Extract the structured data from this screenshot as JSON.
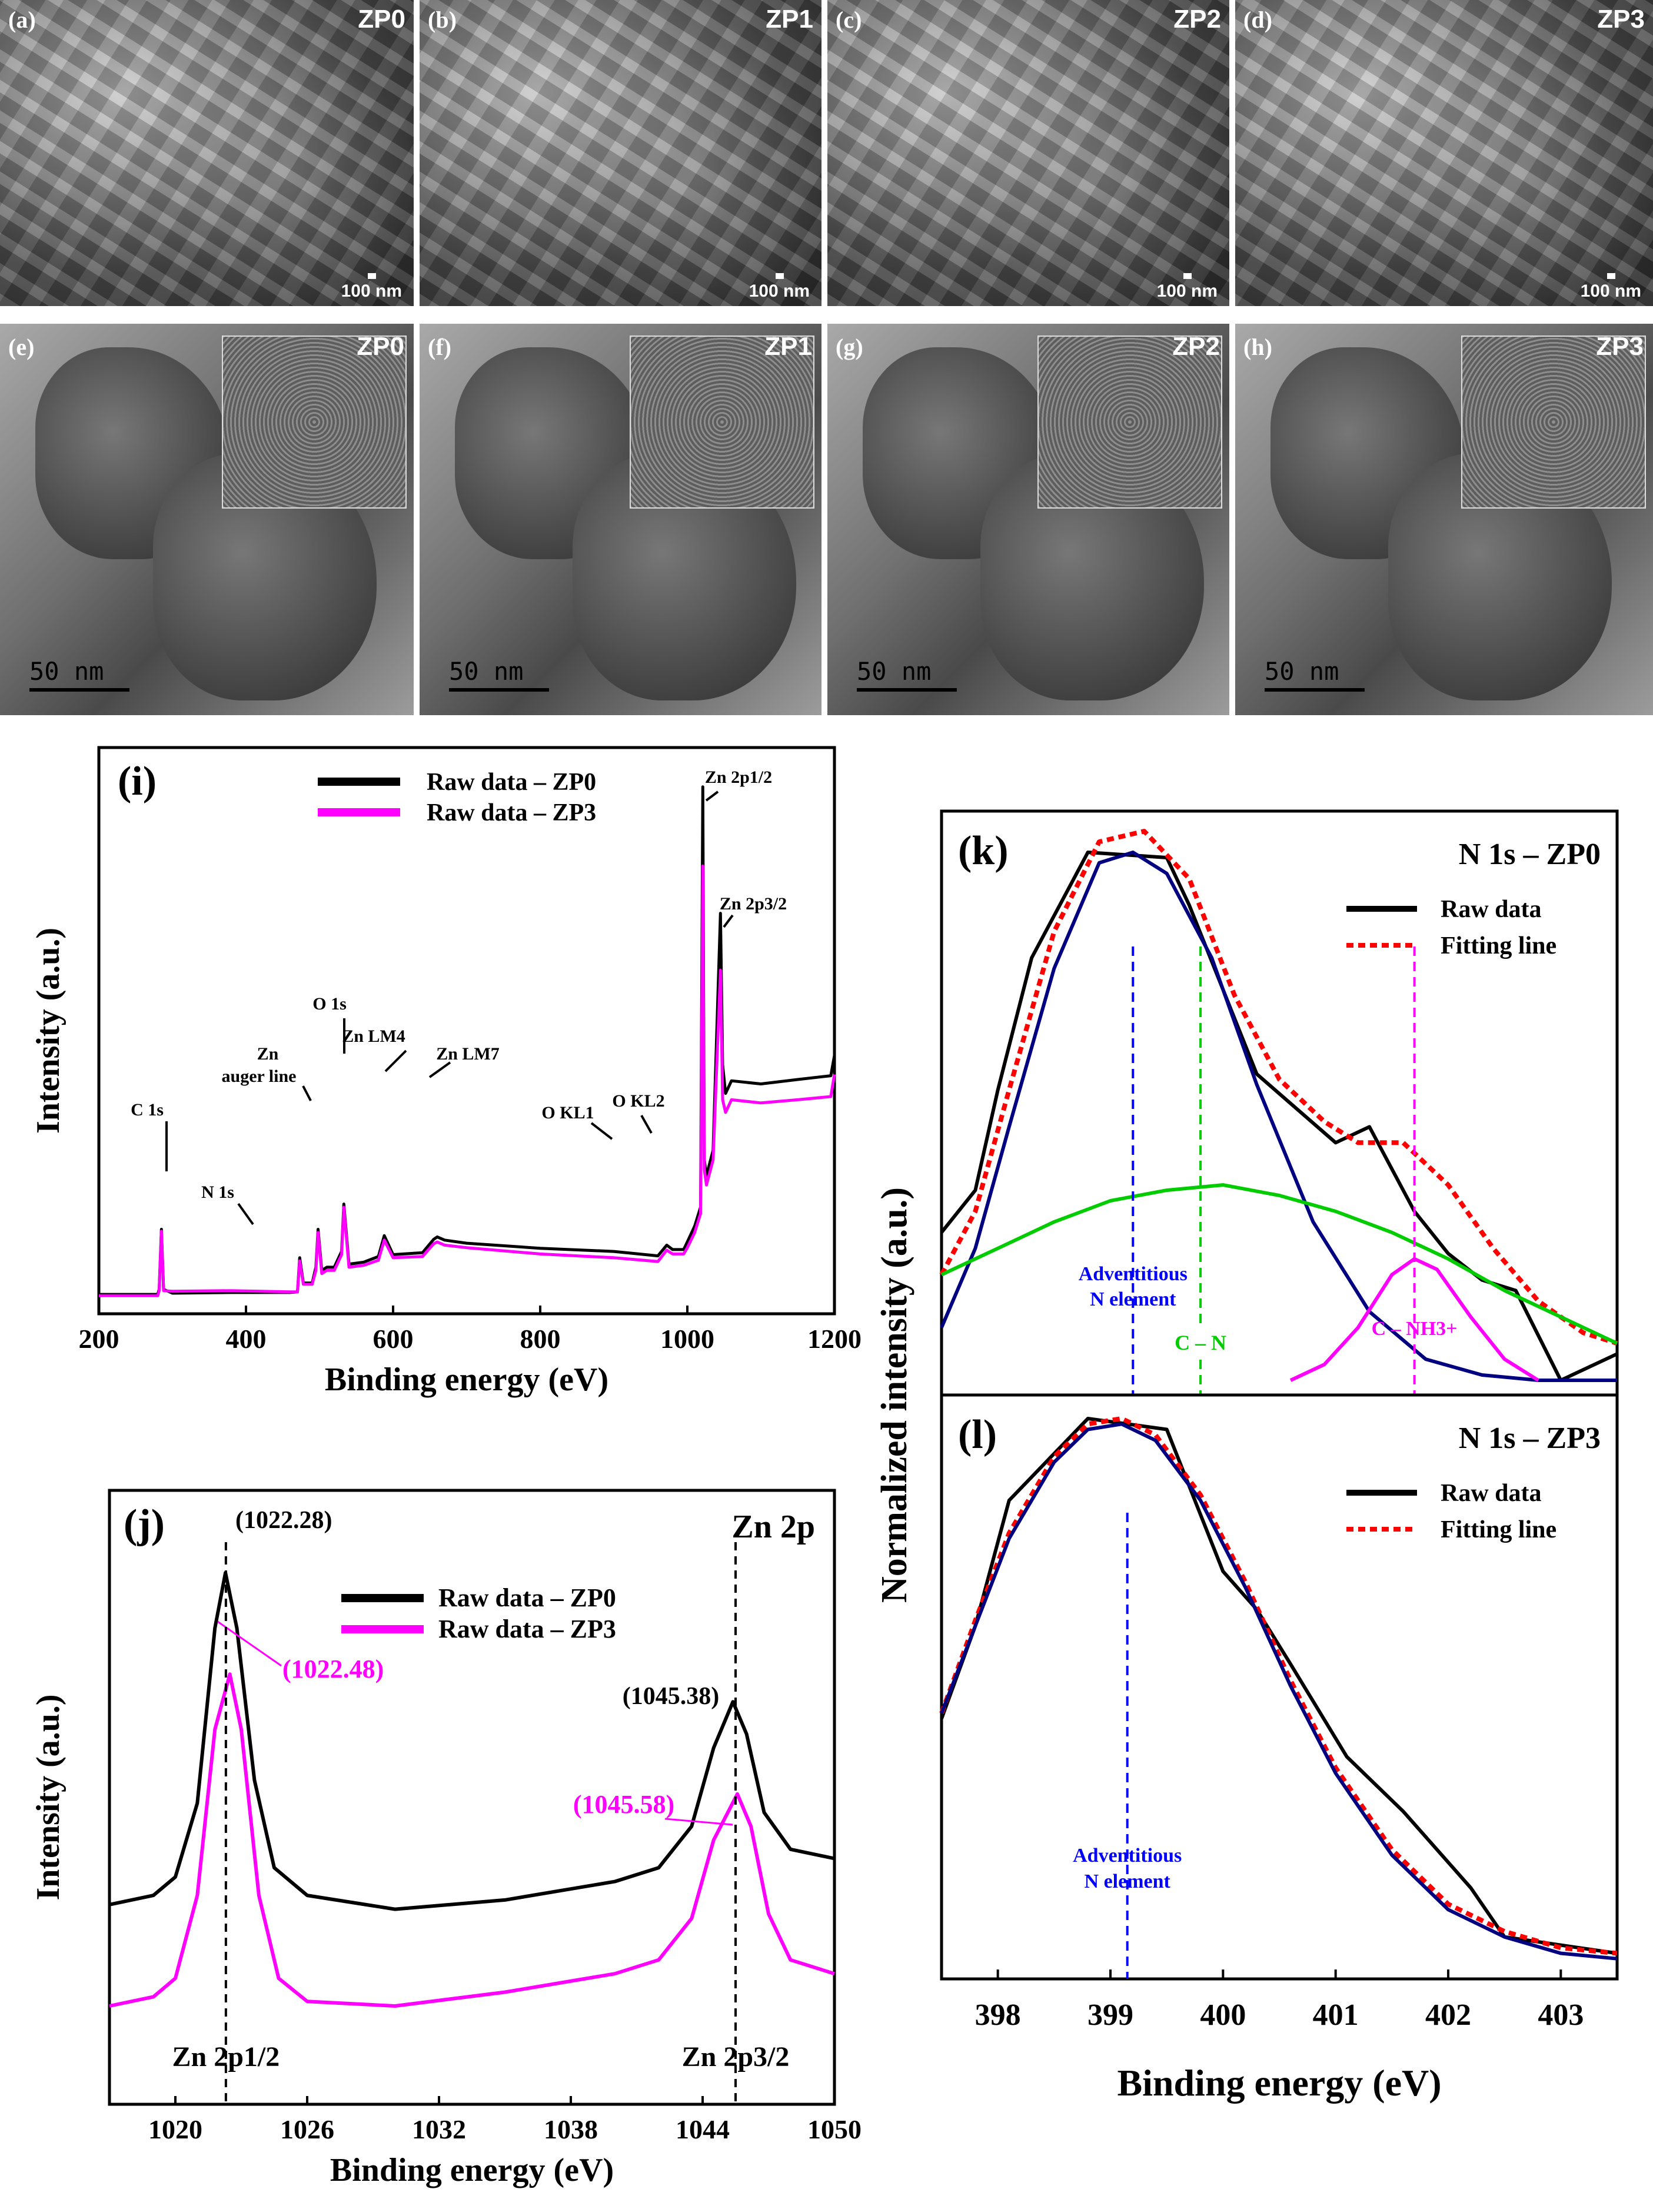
{
  "micrographs": {
    "sem": [
      {
        "letter": "(a)",
        "sample": "ZP0",
        "scale": "100 nm"
      },
      {
        "letter": "(b)",
        "sample": "ZP1",
        "scale": "100 nm"
      },
      {
        "letter": "(c)",
        "sample": "ZP2",
        "scale": "100 nm"
      },
      {
        "letter": "(d)",
        "sample": "ZP3",
        "scale": "100 nm"
      }
    ],
    "tem": [
      {
        "letter": "(e)",
        "sample": "ZP0",
        "scale": "50 nm"
      },
      {
        "letter": "(f)",
        "sample": "ZP1",
        "scale": "50 nm"
      },
      {
        "letter": "(g)",
        "sample": "ZP2",
        "scale": "50 nm"
      },
      {
        "letter": "(h)",
        "sample": "ZP3",
        "scale": "50 nm"
      }
    ]
  },
  "chart_data": [
    {
      "id": "i",
      "panel": "(i)",
      "type": "line",
      "xlabel": "Binding energy (eV)",
      "ylabel": "Intensity (a.u.)",
      "xlim": [
        200,
        1200
      ],
      "xticks": [
        200,
        400,
        600,
        800,
        1000,
        1200
      ],
      "series": [
        {
          "name": "Raw data – ZP0",
          "color": "#000000",
          "x": [
            200,
            280,
            282,
            285,
            288,
            300,
            380,
            460,
            470,
            473,
            478,
            490,
            495,
            498,
            503,
            510,
            520,
            530,
            533,
            540,
            560,
            580,
            588,
            600,
            640,
            655,
            660,
            670,
            700,
            800,
            900,
            960,
            972,
            980,
            995,
            1000,
            1010,
            1018,
            1021,
            1023,
            1026,
            1035,
            1045,
            1048,
            1052,
            1060,
            1100,
            1150,
            1195,
            1200
          ],
          "y": [
            12,
            12,
            20,
            115,
            20,
            14,
            15,
            15,
            16,
            70,
            30,
            30,
            55,
            115,
            50,
            55,
            55,
            80,
            155,
            60,
            63,
            72,
            105,
            75,
            78,
            99,
            103,
            98,
            93,
            85,
            80,
            73,
            90,
            83,
            83,
            95,
            120,
            150,
            815,
            225,
            200,
            240,
            615,
            375,
            330,
            350,
            345,
            352,
            358,
            390
          ]
        },
        {
          "name": "Raw data – ZP3",
          "color": "#ff00ff",
          "x": [
            200,
            280,
            282,
            285,
            288,
            300,
            380,
            460,
            470,
            473,
            478,
            490,
            495,
            498,
            503,
            510,
            520,
            530,
            533,
            540,
            560,
            580,
            588,
            600,
            640,
            655,
            660,
            670,
            700,
            800,
            900,
            960,
            972,
            980,
            995,
            1000,
            1010,
            1018,
            1021,
            1023,
            1026,
            1035,
            1045,
            1048,
            1052,
            1060,
            1100,
            1150,
            1195,
            1200
          ],
          "y": [
            10,
            10,
            18,
            112,
            18,
            17,
            18,
            16,
            16,
            65,
            28,
            28,
            50,
            110,
            45,
            50,
            50,
            75,
            150,
            55,
            58,
            66,
            98,
            70,
            72,
            92,
            95,
            90,
            86,
            76,
            70,
            64,
            82,
            76,
            76,
            86,
            110,
            140,
            690,
            210,
            185,
            225,
            525,
            320,
            300,
            320,
            315,
            320,
            325,
            360
          ]
        }
      ],
      "annotations": [
        {
          "text": "C 1s",
          "x": 285
        },
        {
          "text": "N 1s",
          "x": 400
        },
        {
          "text": "Zn",
          "x": 495
        },
        {
          "text": "auger line",
          "x": 495
        },
        {
          "text": "O 1s",
          "x": 533
        },
        {
          "text": "Zn LM4",
          "x": 590
        },
        {
          "text": "Zn LM7",
          "x": 660
        },
        {
          "text": "O KL1",
          "x": 975
        },
        {
          "text": "O KL2",
          "x": 1000
        },
        {
          "text": "Zn 2p1/2",
          "x": 1021
        },
        {
          "text": "Zn 2p3/2",
          "x": 1045
        }
      ]
    },
    {
      "id": "j",
      "panel": "(j)",
      "type": "line",
      "title": "Zn 2p",
      "xlabel": "Binding energy (eV)",
      "ylabel": "Intensity (a.u.)",
      "xlim": [
        1017,
        1050
      ],
      "xticks": [
        1020,
        1026,
        1032,
        1038,
        1044,
        1050
      ],
      "series": [
        {
          "name": "Raw data – ZP0",
          "color": "#000000",
          "x": [
            1017,
            1019,
            1020,
            1021,
            1021.8,
            1022.28,
            1022.8,
            1023.6,
            1024.5,
            1026,
            1030,
            1035,
            1040,
            1042,
            1043.5,
            1044.5,
            1045.38,
            1046,
            1046.8,
            1048,
            1050
          ],
          "y": [
            0.28,
            0.3,
            0.34,
            0.5,
            0.88,
            1.0,
            0.88,
            0.55,
            0.36,
            0.3,
            0.27,
            0.29,
            0.33,
            0.36,
            0.45,
            0.62,
            0.72,
            0.65,
            0.48,
            0.4,
            0.38
          ]
        },
        {
          "name": "Raw data – ZP3",
          "color": "#ff00ff",
          "x": [
            1017,
            1019,
            1020,
            1021,
            1021.8,
            1022.48,
            1023,
            1023.8,
            1024.7,
            1026,
            1030,
            1035,
            1040,
            1042,
            1043.5,
            1044.5,
            1045.58,
            1046.2,
            1047,
            1048,
            1050
          ],
          "y": [
            0.06,
            0.08,
            0.12,
            0.3,
            0.66,
            0.78,
            0.66,
            0.3,
            0.12,
            0.07,
            0.06,
            0.09,
            0.13,
            0.16,
            0.25,
            0.42,
            0.52,
            0.45,
            0.26,
            0.16,
            0.13
          ]
        }
      ],
      "peak_labels": [
        {
          "text": "(1022.28)"
        },
        {
          "text": "(1022.48)"
        },
        {
          "text": "(1045.38)"
        },
        {
          "text": "(1045.58)"
        }
      ],
      "peak_positions": [
        {
          "label": "Zn 2p1/2",
          "x": 1022.3
        },
        {
          "label": "Zn 2p3/2",
          "x": 1045.5
        }
      ]
    },
    {
      "id": "k",
      "panel": "(k)",
      "type": "line",
      "title": "N 1s – ZP0",
      "xlabel": "Binding energy (eV)",
      "ylabel": "Normalized intensity (a.u.)",
      "xlim": [
        397.5,
        403.5
      ],
      "series": [
        {
          "name": "Raw data",
          "color": "#000000",
          "x": [
            397.5,
            397.8,
            398.0,
            398.3,
            398.8,
            399.5,
            399.7,
            400.3,
            401.0,
            401.3,
            401.7,
            402.0,
            402.3,
            402.6,
            403.0,
            403.5
          ],
          "y": [
            0.28,
            0.36,
            0.55,
            0.8,
            1.0,
            0.99,
            0.9,
            0.58,
            0.45,
            0.48,
            0.32,
            0.24,
            0.19,
            0.17,
            0.0,
            0.05
          ]
        },
        {
          "name": "Fitting line",
          "color": "#ff0000",
          "dash": true,
          "x": [
            397.5,
            397.8,
            398.1,
            398.5,
            398.9,
            399.3,
            399.7,
            400.1,
            400.5,
            400.9,
            401.2,
            401.6,
            402.0,
            402.4,
            402.8,
            403.2,
            403.5
          ],
          "y": [
            0.2,
            0.32,
            0.55,
            0.85,
            1.02,
            1.04,
            0.95,
            0.73,
            0.57,
            0.49,
            0.45,
            0.45,
            0.37,
            0.25,
            0.15,
            0.09,
            0.07
          ]
        },
        {
          "name": "Adventitious N element",
          "color": "#000080",
          "x": [
            397.5,
            397.8,
            398.1,
            398.5,
            398.9,
            399.2,
            399.5,
            399.9,
            400.3,
            400.8,
            401.3,
            401.8,
            402.3,
            402.8,
            403.5
          ],
          "y": [
            0.1,
            0.25,
            0.48,
            0.78,
            0.98,
            1.0,
            0.96,
            0.8,
            0.56,
            0.3,
            0.13,
            0.04,
            0.01,
            0.0,
            0.0
          ]
        },
        {
          "name": "C – N",
          "color": "#00cc00",
          "x": [
            397.5,
            398.0,
            398.5,
            399.0,
            399.5,
            400.0,
            400.5,
            401.0,
            401.5,
            402.0,
            402.5,
            403.0,
            403.5
          ],
          "y": [
            0.2,
            0.25,
            0.3,
            0.34,
            0.36,
            0.37,
            0.35,
            0.32,
            0.28,
            0.23,
            0.17,
            0.12,
            0.07
          ]
        },
        {
          "name": "C – NH3+",
          "color": "#ff00ff",
          "x": [
            400.6,
            400.9,
            401.2,
            401.5,
            401.7,
            401.9,
            402.2,
            402.5,
            402.8
          ],
          "y": [
            0.0,
            0.03,
            0.1,
            0.2,
            0.23,
            0.21,
            0.12,
            0.04,
            0.0
          ]
        }
      ],
      "components": [
        {
          "label": "Adventitious",
          "label2": "N element",
          "x": 399.2,
          "color": "#0000ff"
        },
        {
          "label": "C – N",
          "x": 399.8,
          "color": "#00cc00"
        },
        {
          "label": "C – NH3+",
          "x": 401.7,
          "color": "#ff00ff"
        }
      ]
    },
    {
      "id": "l",
      "panel": "(l)",
      "type": "line",
      "title": "N 1s – ZP3",
      "xlabel": "Binding energy (eV)",
      "ylabel": "Normalized intensity (a.u.)",
      "xlim": [
        397.5,
        403.5
      ],
      "xticks": [
        398,
        399,
        400,
        401,
        402,
        403
      ],
      "series": [
        {
          "name": "Raw data",
          "color": "#000000",
          "x": [
            397.5,
            397.8,
            398.1,
            398.8,
            399.5,
            400.0,
            400.3,
            400.6,
            401.1,
            401.6,
            402.2,
            402.5,
            403.5
          ],
          "y": [
            0.45,
            0.62,
            0.85,
            1.0,
            0.98,
            0.72,
            0.65,
            0.55,
            0.38,
            0.28,
            0.14,
            0.05,
            0.02
          ]
        },
        {
          "name": "Fitting line",
          "color": "#ff0000",
          "dash": true,
          "x": [
            397.5,
            397.8,
            398.1,
            398.5,
            398.8,
            399.1,
            399.4,
            399.8,
            400.2,
            400.6,
            401.0,
            401.5,
            402.0,
            402.5,
            403.0,
            403.5
          ],
          "y": [
            0.46,
            0.63,
            0.79,
            0.93,
            0.99,
            1.0,
            0.97,
            0.86,
            0.7,
            0.52,
            0.36,
            0.21,
            0.11,
            0.06,
            0.03,
            0.02
          ]
        },
        {
          "name": "Adventitious N element",
          "color": "#000080",
          "x": [
            397.5,
            397.8,
            398.1,
            398.5,
            398.8,
            399.1,
            399.4,
            399.8,
            400.2,
            400.6,
            401.0,
            401.5,
            402.0,
            402.5,
            403.0,
            403.5
          ],
          "y": [
            0.46,
            0.62,
            0.78,
            0.92,
            0.98,
            0.99,
            0.96,
            0.85,
            0.69,
            0.51,
            0.35,
            0.2,
            0.1,
            0.05,
            0.02,
            0.01
          ]
        }
      ],
      "components": [
        {
          "label": "Adventitious",
          "label2": "N element",
          "x": 399.15,
          "color": "#0000ff"
        }
      ]
    }
  ]
}
